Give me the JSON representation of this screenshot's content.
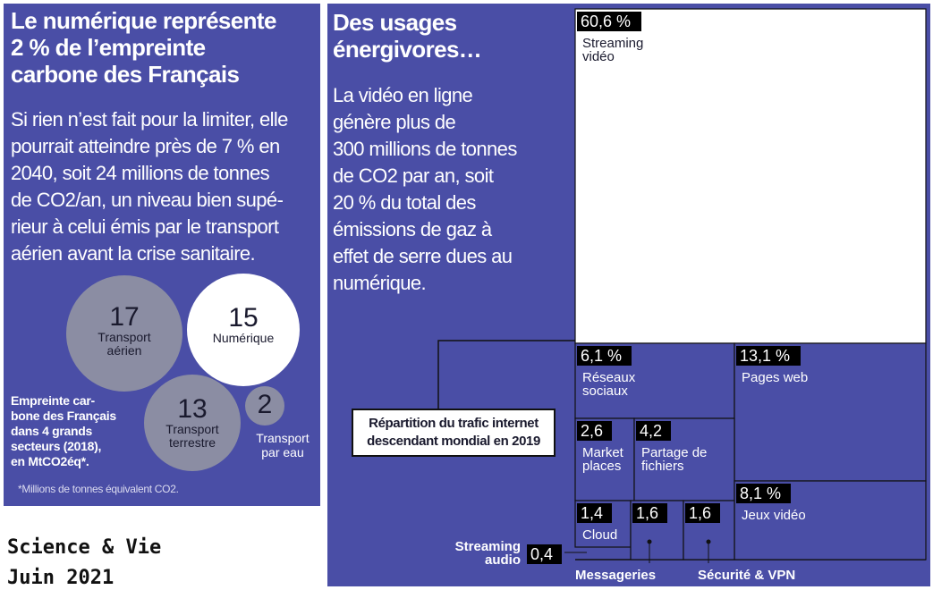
{
  "left": {
    "title_lines": [
      "Le numérique représente",
      "2 % de l’empreinte",
      "carbone des Français"
    ],
    "body_lines": [
      "Si rien n’est fait pour la limiter, elle",
      "pourrait atteindre près de 7 % en",
      "2040, soit 24 millions de tonnes",
      "de CO2/an, un niveau bien supé-",
      "rieur à celui émis par le transport",
      "aérien avant la crise sanitaire."
    ],
    "caption_lines": [
      "Empreinte car-",
      "bone des Français",
      "dans 4 grands",
      "secteurs (2018),",
      "en MtCO2éq*."
    ],
    "footnote": "*Millions de tonnes équivalent CO2."
  },
  "source": {
    "line1": "Science & Vie",
    "line2": "Juin 2021"
  },
  "right": {
    "title_lines": [
      "Des usages",
      "énergivores…"
    ],
    "body_lines": [
      "La vidéo en ligne",
      "génère plus de",
      "300 millions de tonnes",
      "de CO2 par an, soit",
      "20 % du total des",
      "émissions de gaz à",
      "effet de serre dues au",
      "numérique."
    ],
    "legend_lines": [
      "Répartition du trafic internet",
      "descendant mondial en 2019"
    ]
  },
  "chart_data": [
    {
      "type": "bubble",
      "caption": "Empreinte carbone des Français dans 4 grands secteurs (2018), en MtCO2éq*.",
      "unit": "MtCO2éq",
      "items": [
        {
          "label": "Transport aérien",
          "value": 17,
          "label_lines": [
            "Transport",
            "aérien"
          ]
        },
        {
          "label": "Numérique",
          "value": 15,
          "label_lines": [
            "Numérique"
          ]
        },
        {
          "label": "Transport terrestre",
          "value": 13,
          "label_lines": [
            "Transport",
            "terrestre"
          ]
        },
        {
          "label": "Transport par eau",
          "value": 2,
          "label_lines": [
            "Transport",
            "par eau"
          ]
        }
      ],
      "colors": {
        "highlight": "#ffffff",
        "other": "#8b8da3"
      }
    },
    {
      "type": "treemap",
      "title": "Répartition du trafic internet descendant mondial en 2019",
      "unit": "%",
      "items": [
        {
          "label": "Streaming vidéo",
          "value": 60.6,
          "value_text": "60,6 %"
        },
        {
          "label": "Réseaux sociaux",
          "value": 6.1,
          "value_text": "6,1 %"
        },
        {
          "label": "Pages web",
          "value": 13.1,
          "value_text": "13,1 %"
        },
        {
          "label": "Market places",
          "value": 2.6,
          "value_text": "2,6"
        },
        {
          "label": "Partage de fichiers",
          "value": 4.2,
          "value_text": "4,2"
        },
        {
          "label": "Jeux vidéo",
          "value": 8.1,
          "value_text": "8,1 %"
        },
        {
          "label": "Cloud",
          "value": 1.4,
          "value_text": "1,4"
        },
        {
          "label": "Messageries",
          "value": 1.6,
          "value_text": "1,6"
        },
        {
          "label": "Sécurité & VPN",
          "value": 1.6,
          "value_text": "1,6"
        },
        {
          "label": "Streaming audio",
          "value": 0.4,
          "value_text": "0,4"
        }
      ],
      "colors": {
        "highlight": "#ffffff",
        "panel": "#4a4ea6",
        "tag": "#000000"
      }
    }
  ]
}
